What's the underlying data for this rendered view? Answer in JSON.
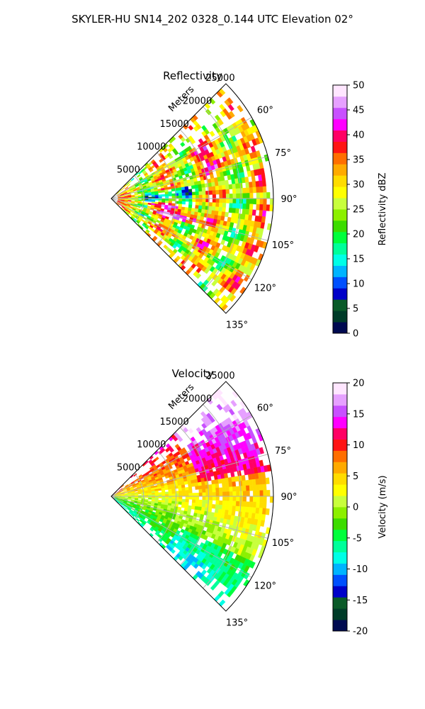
{
  "figure": {
    "title": "SKYLER-HU  SN14_202  0328_0.144 UTC Elevation 02°"
  },
  "chart_data": [
    {
      "type": "heatmap",
      "title": "Reflectivity",
      "range_label": "Meters",
      "range_ticks": [
        "5000",
        "10000",
        "15000",
        "20000",
        "25000"
      ],
      "range_tick_values": [
        5000,
        10000,
        15000,
        20000,
        25000
      ],
      "range_max": 25000,
      "azimuth_ticks": [
        "60°",
        "75°",
        "90°",
        "105°",
        "120°",
        "135°"
      ],
      "azimuth_tick_values": [
        60,
        75,
        90,
        105,
        120,
        135
      ],
      "azimuth_range": [
        45,
        135
      ],
      "grid": true,
      "colorbar": {
        "label": "Reflectivity dBZ",
        "min": 0,
        "max": 50,
        "ticks": [
          "0",
          "5",
          "10",
          "15",
          "20",
          "25",
          "30",
          "35",
          "40",
          "45",
          "50"
        ],
        "tick_values": [
          0,
          5,
          10,
          15,
          20,
          25,
          30,
          35,
          40,
          45,
          50
        ]
      }
    },
    {
      "type": "heatmap",
      "title": "Velocity",
      "range_label": "Meters",
      "range_ticks": [
        "5000",
        "10000",
        "15000",
        "20000",
        "25000"
      ],
      "range_tick_values": [
        5000,
        10000,
        15000,
        20000,
        25000
      ],
      "range_max": 25000,
      "azimuth_ticks": [
        "60°",
        "75°",
        "90°",
        "105°",
        "120°",
        "135°"
      ],
      "azimuth_tick_values": [
        60,
        75,
        90,
        105,
        120,
        135
      ],
      "azimuth_range": [
        45,
        135
      ],
      "grid": true,
      "colorbar": {
        "label": "Velocity (m/s)",
        "min": -20,
        "max": 20,
        "ticks": [
          "-20",
          "-15",
          "-10",
          "-5",
          "0",
          "5",
          "10",
          "15",
          "20"
        ],
        "tick_values": [
          -20,
          -15,
          -10,
          -5,
          0,
          5,
          10,
          15,
          20
        ]
      }
    }
  ],
  "colormap": [
    "#000a50",
    "#003c28",
    "#0a5a28",
    "#0000c8",
    "#0050ff",
    "#00b4ff",
    "#00ffe6",
    "#00ff9a",
    "#00ff3c",
    "#3cdc00",
    "#8cf000",
    "#c8ff3c",
    "#ffff00",
    "#ffdc00",
    "#ffaa00",
    "#ff6e00",
    "#ff1414",
    "#ff0064",
    "#ff00ff",
    "#c850ff",
    "#e6a0ff",
    "#ffe6ff"
  ]
}
